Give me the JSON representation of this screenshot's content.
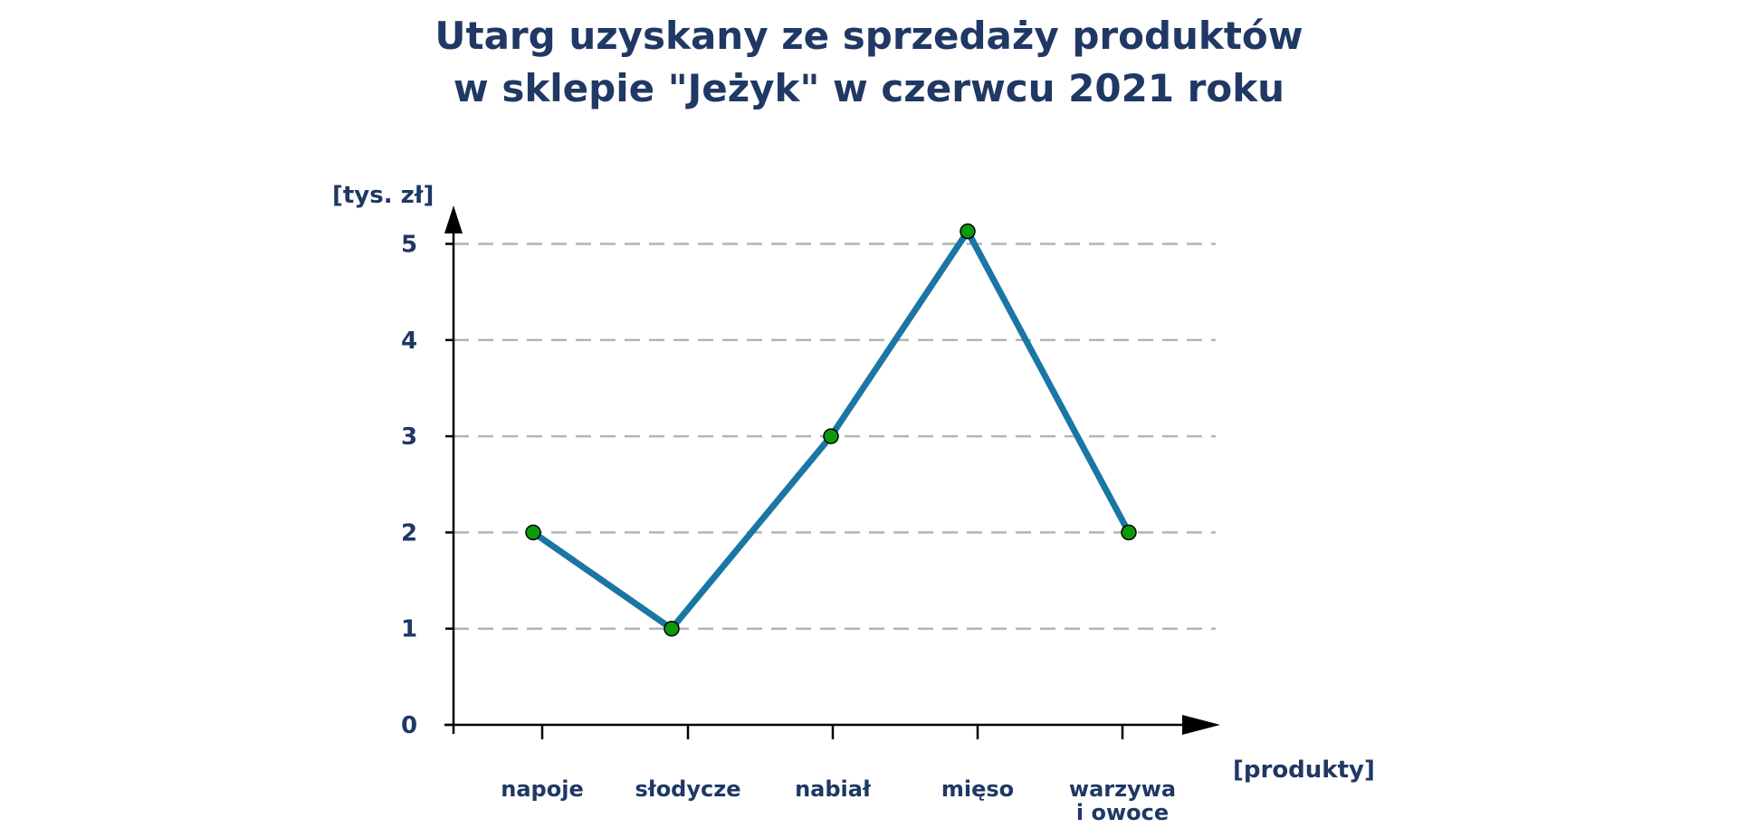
{
  "chart_data": {
    "type": "line",
    "title": [
      "Utarg uzyskany ze sprzedaży produktów",
      "w sklepie \"Jeżyk\" w czerwcu 2021 roku"
    ],
    "ylabel": "[tys. zł]",
    "xlabel": "[produkty]",
    "categories": [
      [
        "napoje"
      ],
      [
        "słodycze"
      ],
      [
        "nabiał"
      ],
      [
        "mięso"
      ],
      [
        "warzywa",
        "i owoce"
      ]
    ],
    "values": [
      2,
      1,
      3,
      5.13,
      2
    ],
    "ylim": [
      0,
      5
    ],
    "yticks": [
      "0",
      "1",
      "2",
      "3",
      "4",
      "5"
    ],
    "grid": "horizontal dashed",
    "colors": {
      "line": "#1a76a4",
      "marker": "#0a9a0a",
      "text": "#1f3864",
      "grid": "#b4b4b4"
    }
  }
}
